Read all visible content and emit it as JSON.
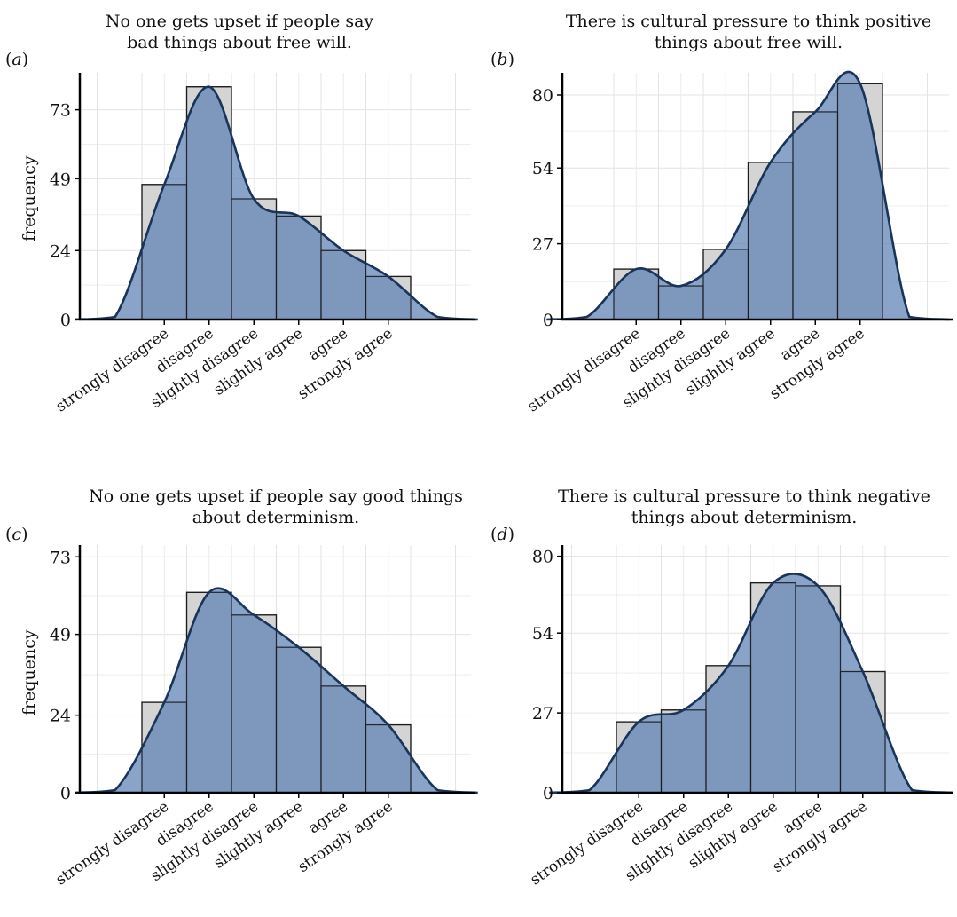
{
  "chart_data": [
    {
      "type": "bar",
      "panel_label": "a",
      "title": "No one gets upset if people say bad things about free will.",
      "ylabel": "frequency",
      "categories": [
        "strongly disagree",
        "disagree",
        "slightly disagree",
        "slightly agree",
        "agree",
        "strongly agree"
      ],
      "values": [
        47,
        81,
        42,
        36,
        24,
        15
      ],
      "yticks": [
        0,
        24,
        49,
        73
      ],
      "ylim": [
        0,
        84
      ],
      "density_overlay": true,
      "grid": true
    },
    {
      "type": "bar",
      "panel_label": "b",
      "title": "There is cultural pressure to think positive things about free will.",
      "ylabel": "",
      "categories": [
        "strongly disagree",
        "disagree",
        "slightly disagree",
        "slightly agree",
        "agree",
        "strongly agree"
      ],
      "values": [
        18,
        12,
        25,
        56,
        74,
        84
      ],
      "yticks": [
        0,
        27,
        54,
        80
      ],
      "ylim": [
        0,
        86
      ],
      "density_overlay": true,
      "grid": true
    },
    {
      "type": "bar",
      "panel_label": "c",
      "title": "No one gets upset if people say good things about determinism.",
      "ylabel": "frequency",
      "categories": [
        "strongly disagree",
        "disagree",
        "slightly disagree",
        "slightly agree",
        "agree",
        "strongly agree"
      ],
      "values": [
        28,
        62,
        55,
        45,
        33,
        21
      ],
      "yticks": [
        0,
        24,
        49,
        73
      ],
      "ylim": [
        0,
        75
      ],
      "density_overlay": true,
      "grid": true
    },
    {
      "type": "bar",
      "panel_label": "d",
      "title": "There is cultural pressure to think negative things about determinism.",
      "ylabel": "",
      "categories": [
        "strongly disagree",
        "disagree",
        "slightly disagree",
        "slightly agree",
        "agree",
        "strongly agree"
      ],
      "values": [
        24,
        28,
        43,
        71,
        70,
        41
      ],
      "yticks": [
        0,
        27,
        54,
        80
      ],
      "ylim": [
        0,
        82
      ],
      "density_overlay": true,
      "grid": true
    }
  ],
  "colors": {
    "bar_fill": "#d4d4d4",
    "bar_stroke": "#1c1c1c",
    "density_fill": "#5d7fb4",
    "density_line": "#1a3458",
    "grid": "#e3e3e3",
    "axis": "#000000"
  }
}
